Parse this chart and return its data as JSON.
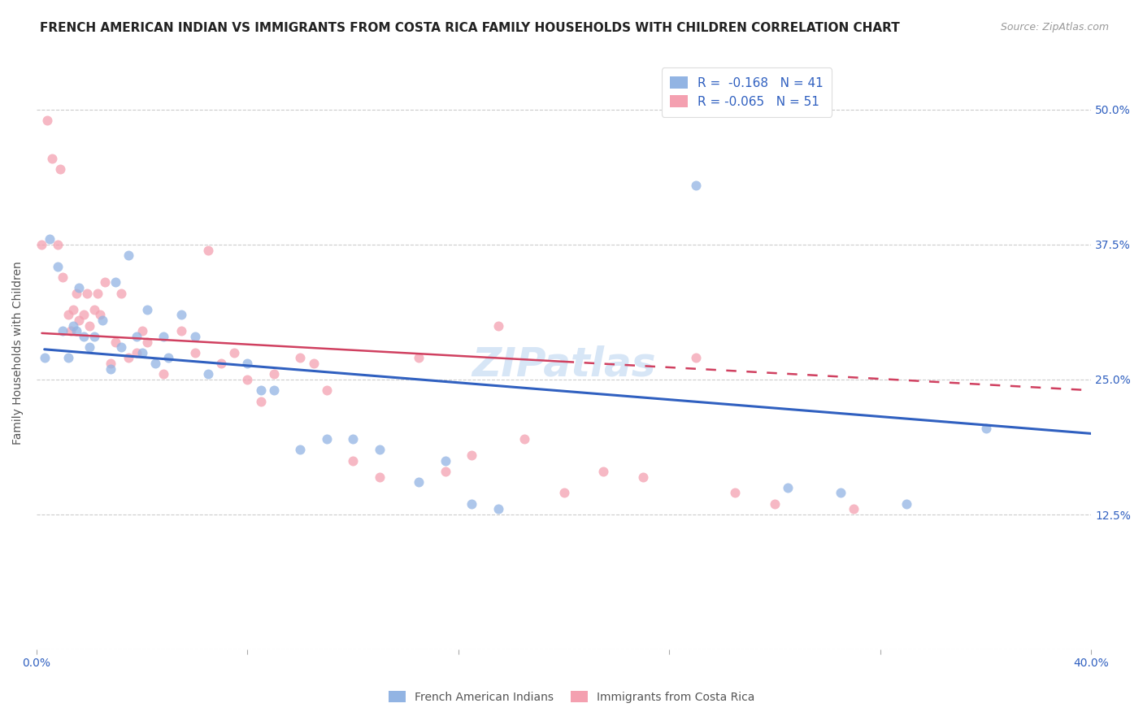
{
  "title": "FRENCH AMERICAN INDIAN VS IMMIGRANTS FROM COSTA RICA FAMILY HOUSEHOLDS WITH CHILDREN CORRELATION CHART",
  "source": "Source: ZipAtlas.com",
  "ylabel": "Family Households with Children",
  "watermark": "ZIPatlas",
  "legend": {
    "blue_R": "-0.168",
    "blue_N": "41",
    "pink_R": "-0.065",
    "pink_N": "51"
  },
  "legend_labels": [
    "French American Indians",
    "Immigrants from Costa Rica"
  ],
  "xlim": [
    0.0,
    0.4
  ],
  "ylim": [
    0.0,
    0.55
  ],
  "yticks": [
    0.0,
    0.125,
    0.25,
    0.375,
    0.5
  ],
  "ytick_labels": [
    "",
    "12.5%",
    "25.0%",
    "37.5%",
    "50.0%"
  ],
  "xticks": [
    0.0,
    0.08,
    0.16,
    0.24,
    0.32,
    0.4
  ],
  "xtick_labels": [
    "0.0%",
    "",
    "",
    "",
    "",
    "40.0%"
  ],
  "blue_color": "#92b4e3",
  "pink_color": "#f4a0b0",
  "blue_line_color": "#3060c0",
  "pink_line_color": "#d04060",
  "grid_color": "#cccccc",
  "background_color": "#ffffff",
  "blue_points_x": [
    0.003,
    0.005,
    0.008,
    0.01,
    0.012,
    0.014,
    0.015,
    0.016,
    0.018,
    0.02,
    0.022,
    0.025,
    0.028,
    0.03,
    0.032,
    0.035,
    0.038,
    0.04,
    0.042,
    0.045,
    0.048,
    0.05,
    0.055,
    0.06,
    0.065,
    0.08,
    0.085,
    0.09,
    0.1,
    0.11,
    0.12,
    0.13,
    0.145,
    0.155,
    0.165,
    0.175,
    0.25,
    0.285,
    0.305,
    0.33,
    0.36
  ],
  "blue_points_y": [
    0.27,
    0.38,
    0.355,
    0.295,
    0.27,
    0.3,
    0.295,
    0.335,
    0.29,
    0.28,
    0.29,
    0.305,
    0.26,
    0.34,
    0.28,
    0.365,
    0.29,
    0.275,
    0.315,
    0.265,
    0.29,
    0.27,
    0.31,
    0.29,
    0.255,
    0.265,
    0.24,
    0.24,
    0.185,
    0.195,
    0.195,
    0.185,
    0.155,
    0.175,
    0.135,
    0.13,
    0.43,
    0.15,
    0.145,
    0.135,
    0.205
  ],
  "pink_points_x": [
    0.002,
    0.004,
    0.006,
    0.008,
    0.009,
    0.01,
    0.012,
    0.013,
    0.014,
    0.015,
    0.016,
    0.018,
    0.019,
    0.02,
    0.022,
    0.023,
    0.024,
    0.026,
    0.028,
    0.03,
    0.032,
    0.035,
    0.038,
    0.04,
    0.042,
    0.048,
    0.055,
    0.06,
    0.065,
    0.07,
    0.075,
    0.08,
    0.085,
    0.09,
    0.1,
    0.105,
    0.11,
    0.12,
    0.13,
    0.145,
    0.155,
    0.165,
    0.175,
    0.185,
    0.2,
    0.215,
    0.23,
    0.25,
    0.265,
    0.28,
    0.31
  ],
  "pink_points_y": [
    0.375,
    0.49,
    0.455,
    0.375,
    0.445,
    0.345,
    0.31,
    0.295,
    0.315,
    0.33,
    0.305,
    0.31,
    0.33,
    0.3,
    0.315,
    0.33,
    0.31,
    0.34,
    0.265,
    0.285,
    0.33,
    0.27,
    0.275,
    0.295,
    0.285,
    0.255,
    0.295,
    0.275,
    0.37,
    0.265,
    0.275,
    0.25,
    0.23,
    0.255,
    0.27,
    0.265,
    0.24,
    0.175,
    0.16,
    0.27,
    0.165,
    0.18,
    0.3,
    0.195,
    0.145,
    0.165,
    0.16,
    0.27,
    0.145,
    0.135,
    0.13
  ],
  "blue_line_x0": 0.003,
  "blue_line_x1": 0.4,
  "blue_line_y0": 0.278,
  "blue_line_y1": 0.2,
  "pink_line_x0": 0.002,
  "pink_line_x1": 0.4,
  "pink_line_y0": 0.293,
  "pink_line_y1": 0.24,
  "title_fontsize": 11,
  "source_fontsize": 9,
  "axis_label_fontsize": 10,
  "tick_fontsize": 10,
  "legend_fontsize": 11,
  "watermark_fontsize": 36,
  "marker_size": 75,
  "marker_alpha": 0.75
}
